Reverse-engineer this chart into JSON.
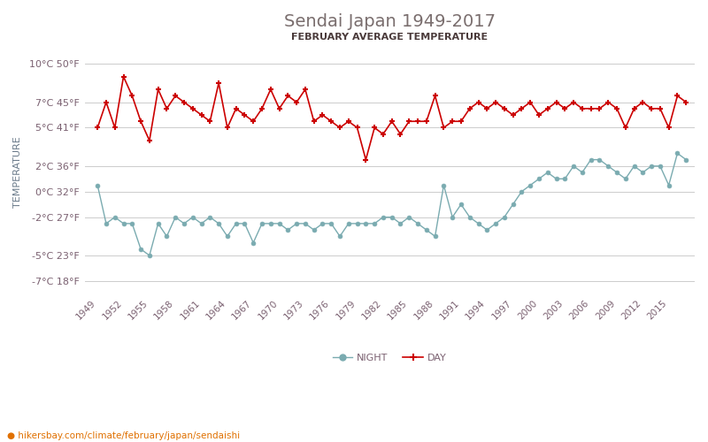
{
  "title": "Sendai Japan 1949-2017",
  "subtitle": "FEBRUARY AVERAGE TEMPERATURE",
  "ylabel": "TEMPERATURE",
  "url": "hikersbay.com/climate/february/japan/sendaishi",
  "title_color": "#7a6e6e",
  "subtitle_color": "#4a3a3a",
  "ylabel_color": "#6a7a8a",
  "axis_label_color": "#7a6070",
  "grid_color": "#cccccc",
  "years": [
    1949,
    1950,
    1951,
    1952,
    1953,
    1954,
    1955,
    1956,
    1957,
    1958,
    1959,
    1960,
    1961,
    1962,
    1963,
    1964,
    1965,
    1966,
    1967,
    1968,
    1969,
    1970,
    1971,
    1972,
    1973,
    1974,
    1975,
    1976,
    1977,
    1978,
    1979,
    1980,
    1981,
    1982,
    1983,
    1984,
    1985,
    1986,
    1987,
    1988,
    1989,
    1990,
    1991,
    1992,
    1993,
    1994,
    1995,
    1996,
    1997,
    1998,
    1999,
    2000,
    2001,
    2002,
    2003,
    2004,
    2005,
    2006,
    2007,
    2008,
    2009,
    2010,
    2011,
    2012,
    2013,
    2014,
    2015,
    2016,
    2017
  ],
  "day_temps": [
    5.0,
    7.0,
    5.0,
    9.0,
    7.5,
    5.5,
    4.0,
    8.0,
    6.5,
    7.5,
    7.0,
    6.5,
    6.0,
    5.5,
    8.5,
    5.0,
    6.5,
    6.0,
    5.5,
    6.5,
    8.0,
    6.5,
    7.5,
    7.0,
    8.0,
    5.5,
    6.0,
    5.5,
    5.0,
    5.5,
    5.0,
    2.5,
    5.0,
    4.5,
    5.5,
    4.5,
    5.5,
    5.5,
    5.5,
    7.5,
    5.0,
    5.5,
    5.5,
    6.5,
    7.0,
    6.5,
    7.0,
    6.5,
    6.0,
    6.5,
    7.0,
    6.0,
    6.5,
    7.0,
    6.5,
    7.0,
    6.5,
    6.5,
    6.5,
    7.0,
    6.5,
    5.0,
    6.5,
    7.0,
    6.5,
    6.5,
    5.0,
    7.5,
    7.0
  ],
  "night_temps": [
    0.5,
    -2.5,
    -2.0,
    -2.5,
    -2.5,
    -4.5,
    -5.0,
    -2.5,
    -3.5,
    -2.0,
    -2.5,
    -2.0,
    -2.5,
    -2.0,
    -2.5,
    -3.5,
    -2.5,
    -2.5,
    -4.0,
    -2.5,
    -2.5,
    -2.5,
    -3.0,
    -2.5,
    -2.5,
    -3.0,
    -2.5,
    -2.5,
    -3.5,
    -2.5,
    -2.5,
    -2.5,
    -2.5,
    -2.0,
    -2.0,
    -2.5,
    -2.0,
    -2.5,
    -3.0,
    -3.5,
    0.5,
    -2.0,
    -1.0,
    -2.0,
    -2.5,
    -3.0,
    -2.5,
    -2.0,
    -1.0,
    0.0,
    0.5,
    1.0,
    1.5,
    1.0,
    1.0,
    2.0,
    1.5,
    2.5,
    2.5,
    2.0,
    1.5,
    1.0,
    2.0,
    1.5,
    2.0,
    2.0,
    0.5,
    3.0,
    2.5
  ],
  "day_color": "#cc0000",
  "night_color": "#7aabb0",
  "ylim_min": -8,
  "ylim_max": 11,
  "yticks_c": [
    -7,
    -5,
    -2,
    0,
    2,
    5,
    7,
    10
  ],
  "yticks_f": [
    18,
    23,
    27,
    32,
    36,
    41,
    45,
    50
  ],
  "xtick_years": [
    1949,
    1952,
    1955,
    1958,
    1961,
    1964,
    1967,
    1970,
    1973,
    1976,
    1979,
    1982,
    1985,
    1988,
    1991,
    1994,
    1997,
    2000,
    2003,
    2006,
    2009,
    2012,
    2015
  ]
}
